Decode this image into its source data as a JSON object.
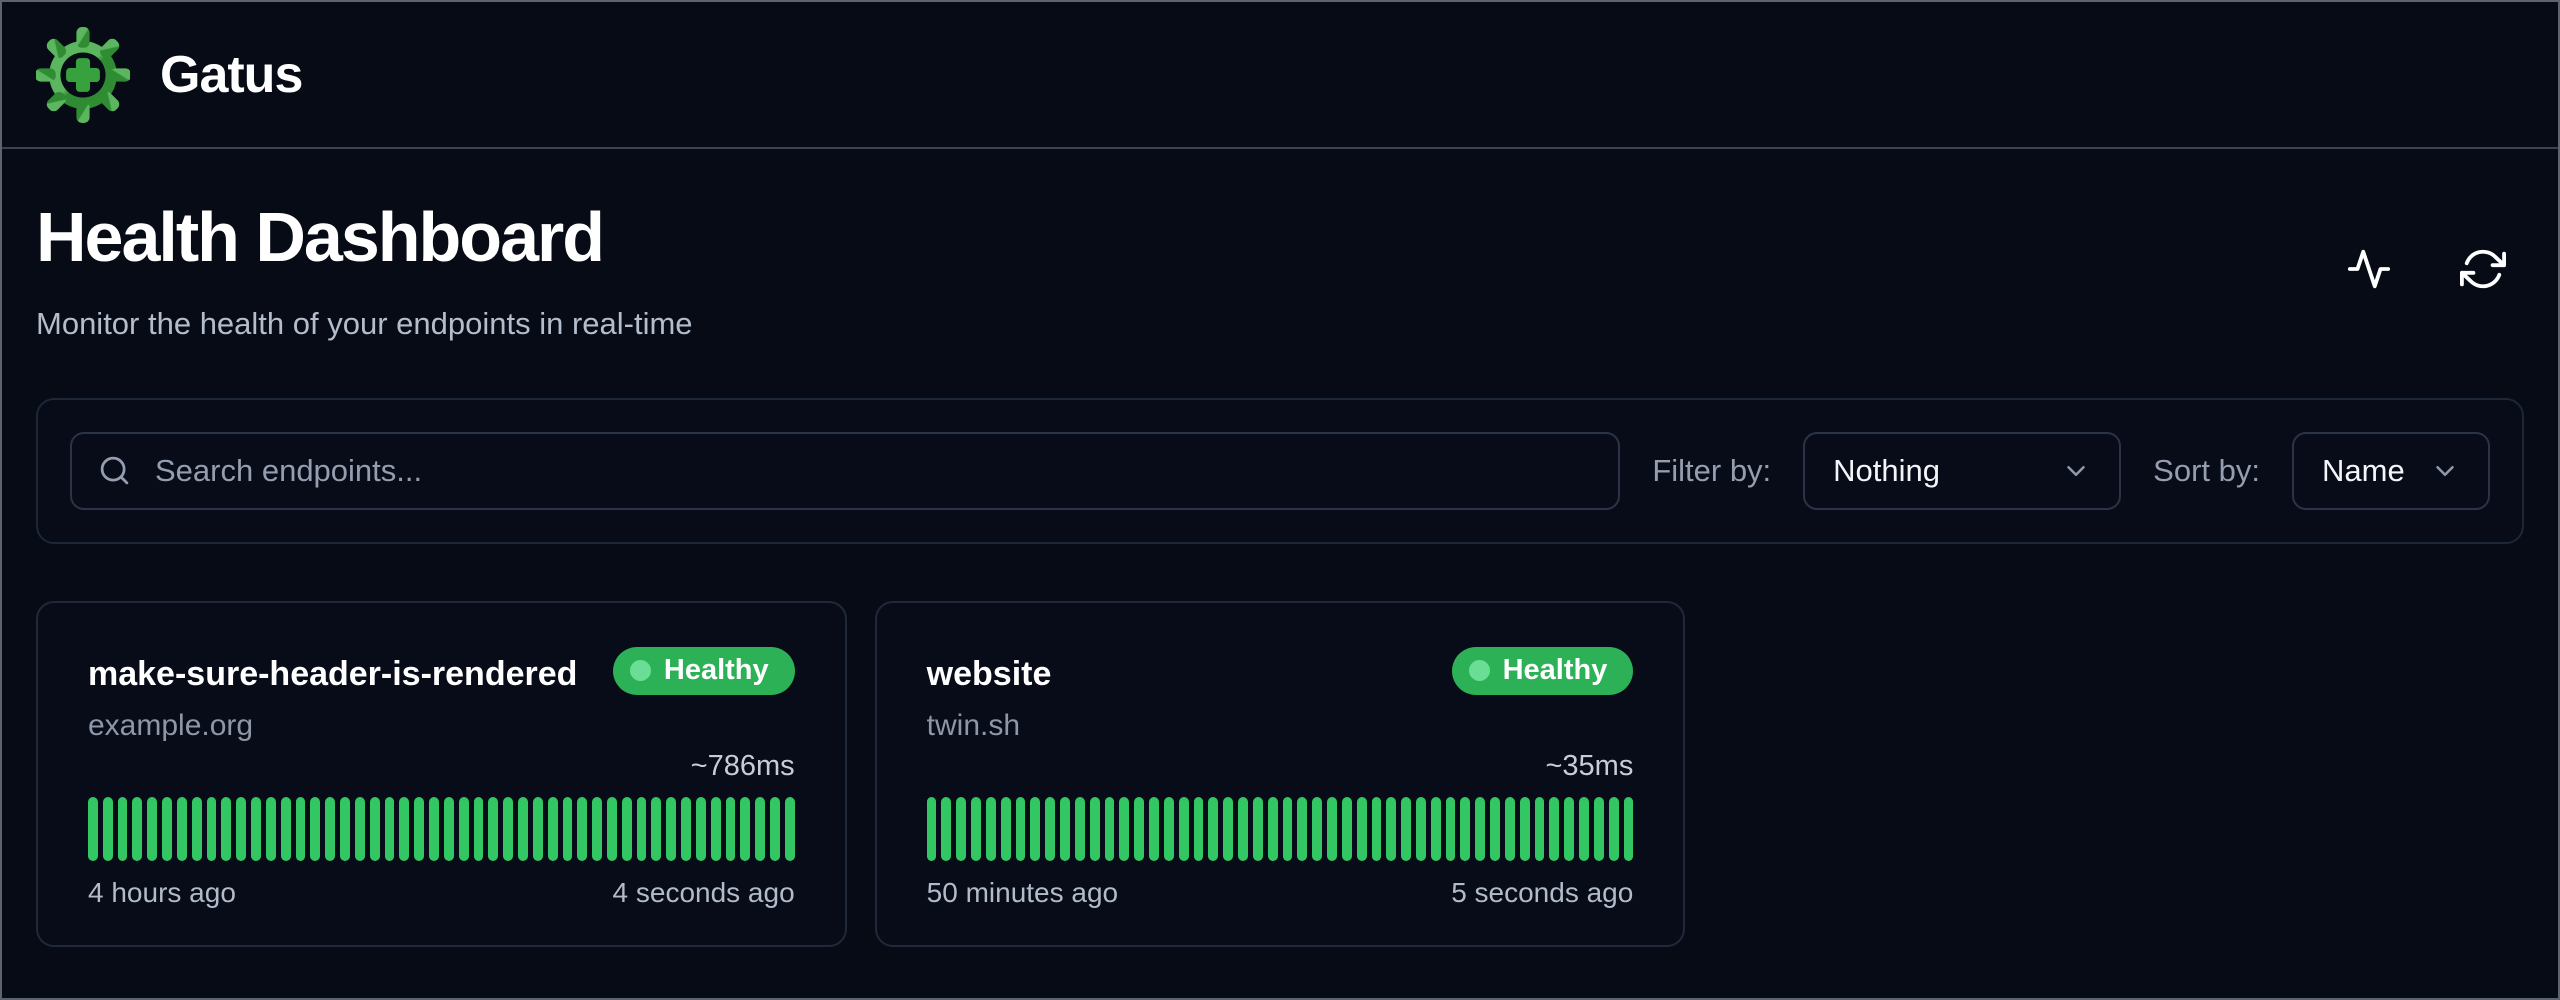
{
  "brand": {
    "app_name": "Gatus",
    "logo_icon": "gear-plus-icon"
  },
  "page": {
    "title": "Health Dashboard",
    "subtitle": "Monitor the health of your endpoints in real-time",
    "action_icons": [
      "activity-icon",
      "refresh-icon"
    ]
  },
  "toolbar": {
    "search": {
      "placeholder": "Search endpoints...",
      "value": "",
      "icon": "search-icon"
    },
    "filter": {
      "label": "Filter by:",
      "selected": "Nothing"
    },
    "sort": {
      "label": "Sort by:",
      "selected": "Name"
    }
  },
  "endpoints": [
    {
      "name": "make-sure-header-is-rendered",
      "hostname": "example.org",
      "status": "Healthy",
      "response_time": "~786ms",
      "range_start": "4 hours ago",
      "range_end": "4 seconds ago",
      "bar_count": 48
    },
    {
      "name": "website",
      "hostname": "twin.sh",
      "status": "Healthy",
      "response_time": "~35ms",
      "range_start": "50 minutes ago",
      "range_end": "5 seconds ago",
      "bar_count": 48
    }
  ],
  "colors": {
    "page_bg": "#060b16",
    "status_green": "#2db157",
    "bar_green": "#33c763",
    "dot_green": "#6ade95",
    "logo_light_green": "#5cb660",
    "logo_dark_green": "#2f8c33",
    "logo_plus_green": "#37a13e"
  }
}
